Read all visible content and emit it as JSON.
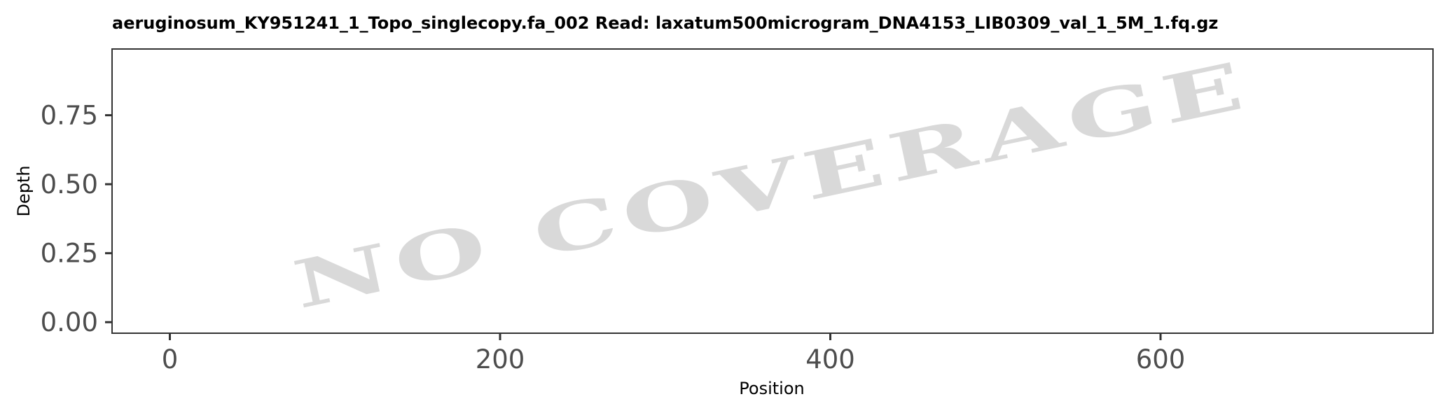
{
  "chart_data": {
    "type": "line",
    "title": "aeruginosum_KY951241_1_Topo_singlecopy.fa_002   Read: laxatum500microgram_DNA4153_LIB0309_val_1_5M_1.fq.gz",
    "xlabel": "Position",
    "ylabel": "Depth",
    "xlim": [
      -35,
      765
    ],
    "ylim": [
      -0.04,
      0.99
    ],
    "x_ticks": [
      0,
      200,
      400,
      600
    ],
    "x_tick_labels": [
      "0",
      "200",
      "400",
      "600"
    ],
    "y_ticks": [
      0,
      0.25,
      0.5,
      0.75
    ],
    "y_tick_labels": [
      "0.00",
      "0.25",
      "0.50",
      "0.75"
    ],
    "series": [],
    "grid": false,
    "annotation": "NO COVERAGE"
  }
}
